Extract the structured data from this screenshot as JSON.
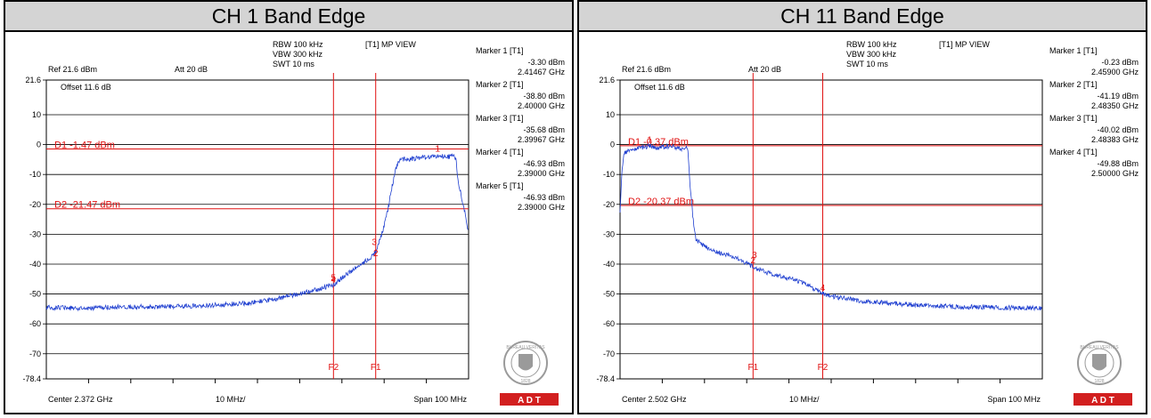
{
  "chart_data": [
    {
      "type": "line",
      "title": "CH 1 Band Edge",
      "settings": {
        "rbw": "RBW 100 kHz",
        "vbw": "VBW 300 kHz",
        "swt": "SWT 10 ms",
        "mode": "[T1] MP VIEW",
        "ref": "Ref 21.6 dBm",
        "att": "Att  20 dB",
        "offset": "Offset 11.6 dB"
      },
      "xlabel_center": "Center 2.372 GHz",
      "xlabel_div": "10 MHz/",
      "xlabel_span": "Span 100 MHz",
      "x_range_ghz": [
        2.322,
        2.422
      ],
      "ylim": [
        -78.4,
        21.6
      ],
      "y_tick_labels": [
        "21.6",
        "10",
        "0",
        "-10",
        "-20",
        "-30",
        "-40",
        "-50",
        "-60",
        "-70",
        "-78.4"
      ],
      "y_ticks": [
        21.6,
        10,
        0,
        -10,
        -20,
        -30,
        -40,
        -50,
        -60,
        -70,
        -78.4
      ],
      "display_lines": [
        {
          "label": "D1 -1.47 dBm",
          "y": -1.47
        },
        {
          "label": "D2 -21.47 dBm",
          "y": -21.47
        }
      ],
      "freq_lines": [
        {
          "label": "F2",
          "x": 2.39
        },
        {
          "label": "F1",
          "x": 2.4
        }
      ],
      "markers": [
        {
          "title": "Marker 1 [T1]",
          "level": "-3.30 dBm",
          "freq": "2.41467 GHz",
          "num": "1",
          "x": 2.41467,
          "y": -3.3
        },
        {
          "title": "Marker 2 [T1]",
          "level": "-38.80 dBm",
          "freq": "2.40000 GHz",
          "num": "2",
          "x": 2.4,
          "y": -38.8
        },
        {
          "title": "Marker 3 [T1]",
          "level": "-35.68 dBm",
          "freq": "2.39967 GHz",
          "num": "3",
          "x": 2.39967,
          "y": -35.68
        },
        {
          "title": "Marker 4 [T1]",
          "level": "-46.93 dBm",
          "freq": "2.39000 GHz",
          "num": "4",
          "x": 2.39,
          "y": -46.93
        },
        {
          "title": "Marker 5 [T1]",
          "level": "-46.93 dBm",
          "freq": "2.39000 GHz",
          "num": "5",
          "x": 2.39,
          "y": -46.93
        }
      ],
      "trace": [
        [
          2.322,
          -54.5
        ],
        [
          2.33,
          -54.8
        ],
        [
          2.34,
          -54.3
        ],
        [
          2.35,
          -54.2
        ],
        [
          2.36,
          -53.9
        ],
        [
          2.37,
          -53.0
        ],
        [
          2.375,
          -52.0
        ],
        [
          2.38,
          -50.5
        ],
        [
          2.385,
          -49.0
        ],
        [
          2.39,
          -46.9
        ],
        [
          2.393,
          -43.5
        ],
        [
          2.396,
          -40.5
        ],
        [
          2.399,
          -37.5
        ],
        [
          2.4,
          -36.0
        ],
        [
          2.401,
          -32.0
        ],
        [
          2.402,
          -27.0
        ],
        [
          2.403,
          -21.0
        ],
        [
          2.404,
          -13.0
        ],
        [
          2.405,
          -7.0
        ],
        [
          2.406,
          -5.0
        ],
        [
          2.41,
          -4.6
        ],
        [
          2.412,
          -4.2
        ],
        [
          2.414,
          -4.0
        ],
        [
          2.415,
          -3.5
        ],
        [
          2.417,
          -4.2
        ],
        [
          2.418,
          -3.8
        ],
        [
          2.419,
          -4.5
        ],
        [
          2.4195,
          -12.0
        ],
        [
          2.421,
          -22.0
        ],
        [
          2.422,
          -29.5
        ]
      ]
    },
    {
      "type": "line",
      "title": "CH 11 Band Edge",
      "settings": {
        "rbw": "RBW 100 kHz",
        "vbw": "VBW 300 kHz",
        "swt": "SWT 10 ms",
        "mode": "[T1] MP VIEW",
        "ref": "Ref 21.6 dBm",
        "att": "Att  20 dB",
        "offset": "Offset 11.6 dB"
      },
      "xlabel_center": "Center 2.502 GHz",
      "xlabel_div": "10 MHz/",
      "xlabel_span": "Span 100 MHz",
      "x_range_ghz": [
        2.452,
        2.552
      ],
      "ylim": [
        -78.4,
        21.6
      ],
      "y_tick_labels": [
        "21.6",
        "10",
        "0",
        "-10",
        "-20",
        "-30",
        "-40",
        "-50",
        "-60",
        "-70",
        "-78.4"
      ],
      "y_ticks": [
        21.6,
        10,
        0,
        -10,
        -20,
        -30,
        -40,
        -50,
        -60,
        -70,
        -78.4
      ],
      "display_lines": [
        {
          "label": "D1 -0.37 dBm",
          "y": -0.37
        },
        {
          "label": "D2 -20.37 dBm",
          "y": -20.37
        }
      ],
      "freq_lines": [
        {
          "label": "F1",
          "x": 2.4835
        },
        {
          "label": "F2",
          "x": 2.5
        }
      ],
      "markers": [
        {
          "title": "Marker 1 [T1]",
          "level": "-0.23 dBm",
          "freq": "2.45900 GHz",
          "num": "1",
          "x": 2.459,
          "y": -0.23
        },
        {
          "title": "Marker 2 [T1]",
          "level": "-41.19 dBm",
          "freq": "2.48350 GHz",
          "num": "2",
          "x": 2.4835,
          "y": -41.19
        },
        {
          "title": "Marker 3 [T1]",
          "level": "-40.02 dBm",
          "freq": "2.48383 GHz",
          "num": "3",
          "x": 2.48383,
          "y": -40.02
        },
        {
          "title": "Marker 4 [T1]",
          "level": "-49.88 dBm",
          "freq": "2.50000 GHz",
          "num": "4",
          "x": 2.5,
          "y": -49.88
        }
      ],
      "trace": [
        [
          2.452,
          -22.0
        ],
        [
          2.4525,
          -8.0
        ],
        [
          2.453,
          -2.5
        ],
        [
          2.455,
          -2.0
        ],
        [
          2.457,
          -1.0
        ],
        [
          2.459,
          -0.4
        ],
        [
          2.461,
          -1.5
        ],
        [
          2.462,
          -0.8
        ],
        [
          2.464,
          -0.5
        ],
        [
          2.466,
          -1.5
        ],
        [
          2.468,
          -1.0
        ],
        [
          2.4685,
          -12.0
        ],
        [
          2.469,
          -20.0
        ],
        [
          2.4695,
          -28.0
        ],
        [
          2.47,
          -32.0
        ],
        [
          2.472,
          -34.0
        ],
        [
          2.475,
          -36.0
        ],
        [
          2.48,
          -38.0
        ],
        [
          2.4835,
          -41.0
        ],
        [
          2.487,
          -43.0
        ],
        [
          2.49,
          -44.0
        ],
        [
          2.494,
          -45.5
        ],
        [
          2.497,
          -47.5
        ],
        [
          2.5,
          -49.8
        ],
        [
          2.503,
          -51.0
        ],
        [
          2.51,
          -52.5
        ],
        [
          2.52,
          -53.5
        ],
        [
          2.53,
          -54.2
        ],
        [
          2.54,
          -54.5
        ],
        [
          2.552,
          -54.8
        ]
      ]
    }
  ],
  "panels": [
    {
      "title": "CH 1 Band Edge",
      "logo": {
        "ring_text": "BUREAU VERITAS",
        "year": "1828",
        "footer": "A  D  T"
      }
    },
    {
      "title": "CH 11 Band Edge",
      "logo": {
        "ring_text": "BUREAU VERITAS",
        "year": "1828",
        "footer": "A  D  T"
      }
    }
  ],
  "colors": {
    "trace": "#1f3fd0",
    "lines": "#e01010",
    "logo": "#9a9a9a",
    "logo_bar": "#d21f1f",
    "header_bg": "#d4d4d4"
  }
}
